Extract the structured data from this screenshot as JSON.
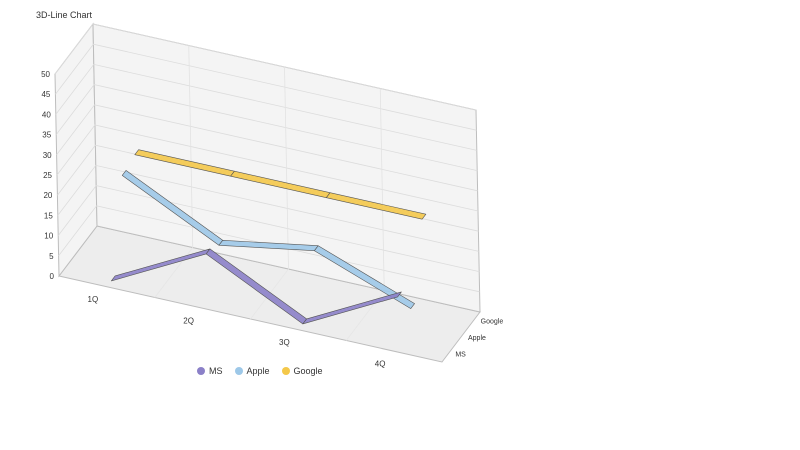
{
  "chart_data": {
    "type": "line",
    "title": "3D-Line Chart",
    "categories": [
      "1Q",
      "2Q",
      "3Q",
      "4Q"
    ],
    "depth_categories": [
      "Google",
      "Apple",
      "MS"
    ],
    "ylim": [
      0,
      50
    ],
    "yticks": [
      "0",
      "5",
      "10",
      "15",
      "20",
      "25",
      "30",
      "35",
      "40",
      "45",
      "50"
    ],
    "grid": true,
    "legend_position": "bottom",
    "series": [
      {
        "name": "MS",
        "values": [
          0,
          12,
          0,
          12
        ],
        "color": "#8b80c8"
      },
      {
        "name": "Apple",
        "values": [
          22,
          10,
          14,
          5
        ],
        "color": "#9dc8e8"
      },
      {
        "name": "Google",
        "values": [
          23,
          23,
          23,
          23
        ],
        "color": "#f4c84a"
      }
    ]
  }
}
